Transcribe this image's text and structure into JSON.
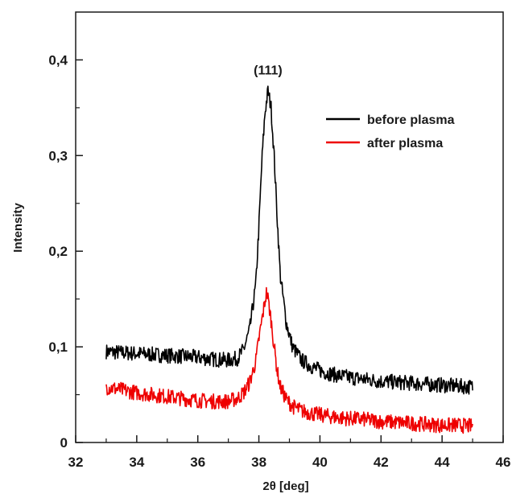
{
  "chart_data": {
    "type": "line",
    "xlabel": "2θ [deg]",
    "ylabel": "Intensity",
    "xlim": [
      32,
      46
    ],
    "ylim": [
      0,
      0.45
    ],
    "x_ticks": [
      32,
      34,
      36,
      38,
      40,
      42,
      44,
      46
    ],
    "y_ticks": [
      0,
      0.1,
      0.2,
      0.3,
      0.4
    ],
    "x_tick_labels": [
      "32",
      "34",
      "36",
      "38",
      "40",
      "42",
      "44",
      "46"
    ],
    "y_tick_labels": [
      "0",
      "0,1",
      "0,2",
      "0,3",
      "0,4"
    ],
    "grid": false,
    "legend_position": "top-right",
    "annotations": [
      {
        "text": "(111)",
        "x": 38.3,
        "y": 0.39
      }
    ],
    "series": [
      {
        "name": "before plasma",
        "color": "#000000",
        "x": [
          33.0,
          33.5,
          34.0,
          34.5,
          35.0,
          35.5,
          36.0,
          36.5,
          37.0,
          37.3,
          37.5,
          37.7,
          37.9,
          38.0,
          38.1,
          38.2,
          38.3,
          38.4,
          38.5,
          38.6,
          38.7,
          38.9,
          39.1,
          39.4,
          39.8,
          40.2,
          40.6,
          41.0,
          41.5,
          42.0,
          42.5,
          43.0,
          43.5,
          44.0,
          44.5,
          45.0
        ],
        "y": [
          0.095,
          0.094,
          0.093,
          0.092,
          0.091,
          0.09,
          0.089,
          0.087,
          0.086,
          0.088,
          0.097,
          0.118,
          0.165,
          0.225,
          0.295,
          0.345,
          0.368,
          0.35,
          0.3,
          0.235,
          0.175,
          0.125,
          0.1,
          0.086,
          0.078,
          0.073,
          0.07,
          0.068,
          0.066,
          0.064,
          0.063,
          0.062,
          0.061,
          0.06,
          0.059,
          0.058
        ]
      },
      {
        "name": "after plasma",
        "color": "#ee0000",
        "x": [
          33.0,
          33.5,
          34.0,
          34.5,
          35.0,
          35.5,
          36.0,
          36.5,
          37.0,
          37.3,
          37.5,
          37.7,
          37.9,
          38.0,
          38.1,
          38.2,
          38.25,
          38.3,
          38.4,
          38.5,
          38.6,
          38.7,
          38.9,
          39.1,
          39.4,
          39.8,
          40.2,
          40.6,
          41.0,
          41.5,
          42.0,
          42.5,
          43.0,
          43.5,
          44.0,
          44.5,
          45.0
        ],
        "y": [
          0.058,
          0.055,
          0.052,
          0.05,
          0.048,
          0.046,
          0.044,
          0.043,
          0.043,
          0.046,
          0.052,
          0.063,
          0.085,
          0.108,
          0.128,
          0.148,
          0.157,
          0.15,
          0.128,
          0.1,
          0.075,
          0.058,
          0.045,
          0.038,
          0.033,
          0.03,
          0.028,
          0.026,
          0.025,
          0.024,
          0.022,
          0.021,
          0.02,
          0.019,
          0.018,
          0.018,
          0.017
        ]
      }
    ]
  }
}
